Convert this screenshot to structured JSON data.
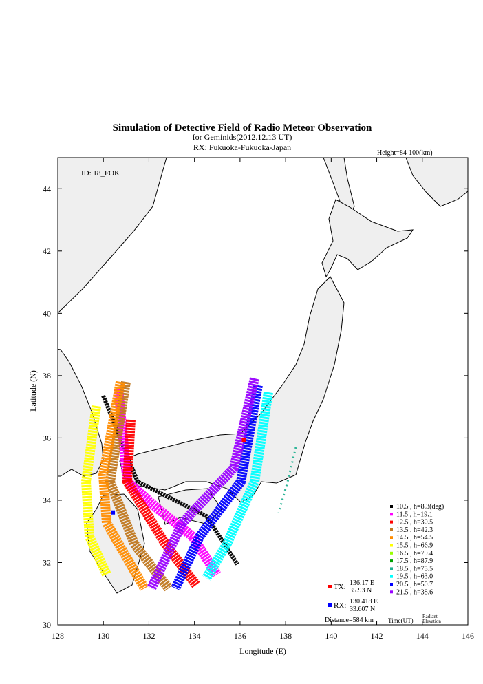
{
  "chart_data": {
    "type": "map",
    "title": "Simulation of Detective Field of Radio Meteor Observation",
    "subtitle": "for Geminids(2012.12.13 UT)",
    "receiver": "RX: Fukuoka-Fukuoka-Japan",
    "height_note": "Height=84-100(km)",
    "id_note": "ID: 18_FOK",
    "xlabel": "Longitude (E)",
    "ylabel": "Latitude (N)",
    "xlim": [
      128,
      146
    ],
    "ylim": [
      30,
      45
    ],
    "xticks": [
      128,
      130,
      132,
      134,
      136,
      138,
      140,
      142,
      144,
      146
    ],
    "yticks": [
      30,
      32,
      34,
      36,
      38,
      40,
      42,
      44
    ],
    "series": [
      {
        "name": "10.5 ,  h=8.3(deg)",
        "color": "#000000"
      },
      {
        "name": "11.5 ,  h=19.1",
        "color": "#ff00ff"
      },
      {
        "name": "12.5 ,  h=30.5",
        "color": "#ff0000"
      },
      {
        "name": "13.5 ,  h=42.3",
        "color": "#c07820"
      },
      {
        "name": "14.5 ,  h=54.5",
        "color": "#ff8c00"
      },
      {
        "name": "15.5 ,  h=66.9",
        "color": "#ffff00"
      },
      {
        "name": "16.5 ,  h=79.4",
        "color": "#99ff00"
      },
      {
        "name": "17.5 ,  h=87.9",
        "color": "#00a000"
      },
      {
        "name": "18.5 ,  h=75.5",
        "color": "#20b090"
      },
      {
        "name": "19.5 ,  h=63.0",
        "color": "#00ffff"
      },
      {
        "name": "20.5 ,  h=50.7",
        "color": "#0000ff"
      },
      {
        "name": "21.5 ,  h=38.6",
        "color": "#9900ff"
      }
    ],
    "legend_time": "Time(UT)",
    "legend_elevation": "Radiant Elevation",
    "tx": {
      "label": "TX:",
      "lon": 136.17,
      "lon_label": "136.17 E",
      "lat": 35.93,
      "lat_label": "35.93 N",
      "color": "#ff0000"
    },
    "rx": {
      "label": "RX:",
      "lon": 130.418,
      "lon_label": "130.418 E",
      "lat": 33.607,
      "lat_label": "33.607 N",
      "color": "#0000ff"
    },
    "distance": "Distance=584 km"
  }
}
